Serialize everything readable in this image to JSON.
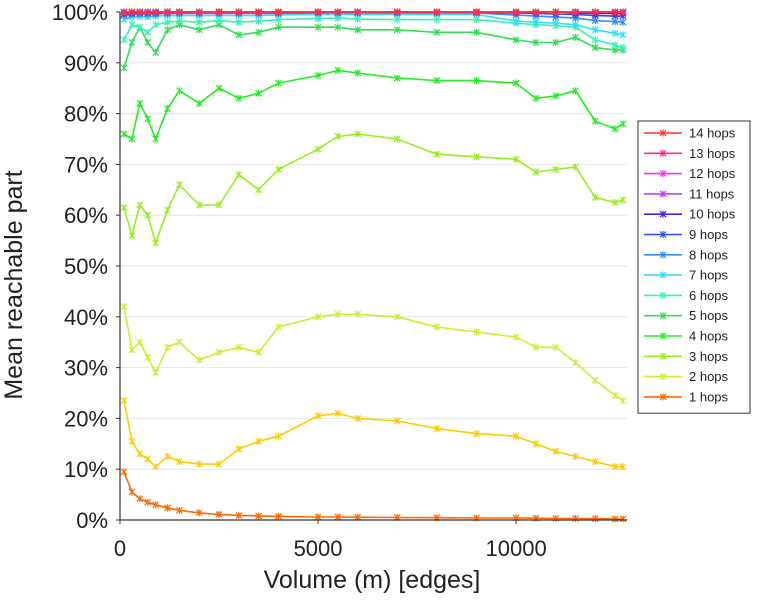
{
  "chart_data": {
    "type": "line",
    "title": "",
    "xlabel": "Volume (m) [edges]",
    "ylabel": "Mean reachable part",
    "xlim": [
      0,
      12800
    ],
    "ylim": [
      0,
      100
    ],
    "x_ticks": [
      0,
      5000,
      10000
    ],
    "x_tick_labels": [
      "0",
      "5000",
      "10000"
    ],
    "y_ticks": [
      0,
      10,
      20,
      30,
      40,
      50,
      60,
      70,
      80,
      90,
      100
    ],
    "y_tick_labels": [
      "0%",
      "10%",
      "20%",
      "30%",
      "40%",
      "50%",
      "60%",
      "70%",
      "80%",
      "90%",
      "100%"
    ],
    "legend_position": "right",
    "x": [
      100,
      300,
      500,
      700,
      900,
      1200,
      1500,
      2000,
      2500,
      3000,
      3500,
      4000,
      5000,
      5500,
      6000,
      7000,
      8000,
      9000,
      10000,
      10500,
      11000,
      11500,
      12000,
      12500,
      12700
    ],
    "series": [
      {
        "name": "14 hops",
        "color": "#ff3333",
        "values": [
          100,
          100,
          100,
          100,
          100,
          100,
          100,
          100,
          100,
          100,
          100,
          100,
          100,
          100,
          100,
          100,
          100,
          100,
          100,
          100,
          100,
          100,
          100,
          100,
          100
        ]
      },
      {
        "name": "13 hops",
        "color": "#ff2d8f",
        "values": [
          100,
          100,
          100,
          100,
          100,
          100,
          100,
          100,
          100,
          100,
          100,
          100,
          100,
          100,
          100,
          100,
          100,
          100,
          100,
          100,
          100,
          100,
          100,
          100,
          100
        ]
      },
      {
        "name": "12 hops",
        "color": "#ff33ee",
        "values": [
          100,
          100,
          100,
          100,
          100,
          100,
          100,
          100,
          100,
          100,
          100,
          100,
          100,
          100,
          100,
          100,
          100,
          100,
          100,
          100,
          100,
          100,
          100,
          100,
          100
        ]
      },
      {
        "name": "11 hops",
        "color": "#c040ff",
        "values": [
          100,
          100,
          100,
          100,
          100,
          100,
          100,
          100,
          100,
          100,
          100,
          100,
          100,
          100,
          100,
          100,
          100,
          100,
          100,
          100,
          100,
          100,
          100,
          100,
          100
        ]
      },
      {
        "name": "10 hops",
        "color": "#4d22e0",
        "values": [
          100,
          100,
          100,
          100,
          100,
          100,
          100,
          100,
          100,
          100,
          100,
          100,
          100,
          100,
          100,
          100,
          100,
          100,
          100,
          100,
          100,
          99.8,
          99.7,
          99.7,
          99.7
        ]
      },
      {
        "name": "9 hops",
        "color": "#2e4bff",
        "values": [
          99.6,
          99.7,
          99.8,
          99.8,
          99.8,
          99.9,
          99.9,
          99.9,
          99.9,
          99.9,
          99.9,
          99.9,
          99.9,
          99.9,
          99.9,
          99.9,
          99.9,
          99.9,
          99.8,
          99.7,
          99.6,
          99.5,
          99.3,
          99.2,
          99.2
        ]
      },
      {
        "name": "8 hops",
        "color": "#2a90ff",
        "values": [
          99.3,
          99.5,
          99.6,
          99.6,
          99.6,
          99.7,
          99.7,
          99.7,
          99.7,
          99.7,
          99.7,
          99.7,
          99.8,
          99.8,
          99.8,
          99.8,
          99.8,
          99.8,
          99.4,
          99.2,
          99.0,
          98.8,
          98.3,
          98.1,
          98.0
        ]
      },
      {
        "name": "7 hops",
        "color": "#33ddff",
        "values": [
          98.5,
          99.0,
          99.1,
          99.0,
          99.2,
          99.3,
          99.3,
          99.3,
          99.3,
          99.3,
          99.3,
          99.4,
          99.5,
          99.5,
          99.5,
          99.5,
          99.5,
          99.5,
          98.2,
          98.0,
          97.8,
          97.5,
          96.5,
          95.8,
          95.5
        ]
      },
      {
        "name": "6 hops",
        "color": "#33f5b0",
        "values": [
          94.5,
          97.5,
          97.0,
          96.0,
          97.5,
          98.0,
          98.2,
          98.0,
          98.3,
          98.0,
          98.2,
          98.5,
          98.7,
          98.8,
          98.6,
          98.5,
          98.5,
          98.5,
          97.8,
          97.5,
          97.3,
          97.0,
          94.5,
          93.5,
          93.0
        ]
      },
      {
        "name": "5 hops",
        "color": "#33dd55",
        "values": [
          89,
          94,
          97,
          94,
          92,
          96.5,
          97.5,
          96.5,
          97.5,
          95.5,
          96,
          97,
          97,
          97,
          96.5,
          96.5,
          96,
          96,
          94.5,
          94,
          94,
          95,
          93,
          92.5,
          92.5
        ]
      },
      {
        "name": "4 hops",
        "color": "#22ee22",
        "values": [
          76,
          75,
          82,
          79,
          75,
          81,
          84.5,
          82,
          85,
          83,
          84,
          86,
          87.5,
          88.5,
          88,
          87,
          86.5,
          86.5,
          86,
          83,
          83.5,
          84.5,
          78.5,
          77,
          78
        ]
      },
      {
        "name": "3 hops",
        "color": "#99ee22",
        "values": [
          61.5,
          56,
          62,
          60,
          54.5,
          61,
          66,
          62,
          62,
          68,
          65,
          69,
          73,
          75.5,
          76,
          75,
          72,
          71.5,
          71,
          68.5,
          69,
          69.5,
          63.5,
          62.5,
          63
        ]
      },
      {
        "name": "2 hops",
        "color": "#ccee33",
        "values": [
          42,
          33.5,
          35,
          32,
          29,
          34,
          35,
          31.5,
          33,
          34,
          33,
          38,
          40,
          40.5,
          40.5,
          40,
          38,
          37,
          36,
          34,
          34,
          31,
          27.5,
          24.5,
          23.5
        ]
      },
      {
        "name": "1 hops",
        "color": "#ff6a00",
        "values": [
          9.5,
          5.5,
          4.2,
          3.5,
          3.0,
          2.4,
          1.9,
          1.4,
          1.1,
          0.9,
          0.8,
          0.7,
          0.6,
          0.6,
          0.55,
          0.5,
          0.45,
          0.4,
          0.4,
          0.35,
          0.3,
          0.3,
          0.25,
          0.2,
          0.2
        ]
      }
    ],
    "extra_series_values": {
      "2 hops": [
        23.5,
        15.5,
        13,
        12,
        10.5,
        12.5,
        11.5,
        11,
        11,
        14,
        15.5,
        16.5,
        20.5,
        21,
        20,
        19.5,
        18,
        17,
        16.5,
        15,
        13.5,
        12.5,
        11.5,
        10.5,
        10.5
      ]
    }
  }
}
